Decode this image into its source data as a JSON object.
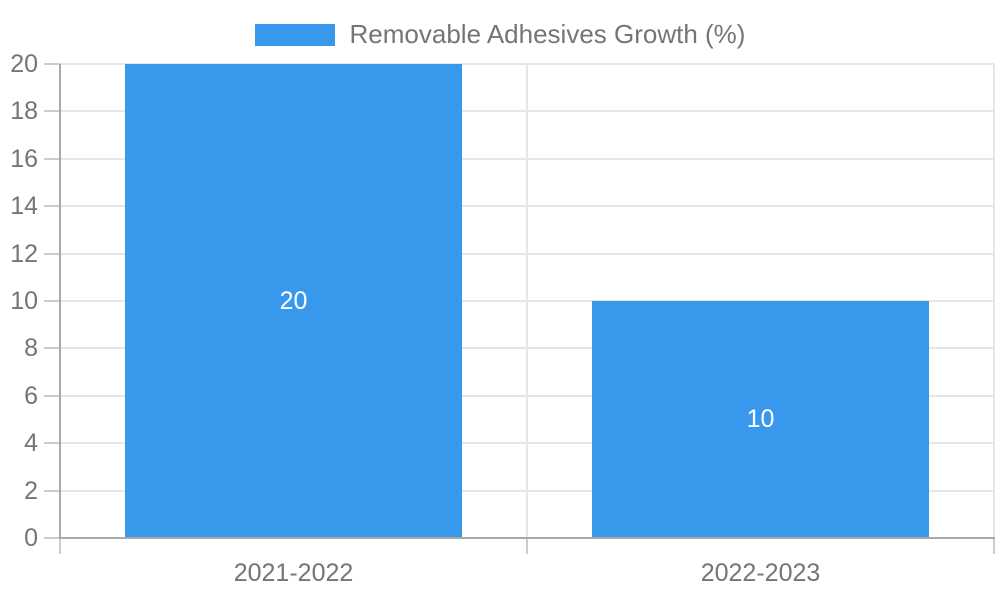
{
  "chart_data": {
    "type": "bar",
    "title": "",
    "legend": {
      "label": "Removable Adhesives Growth (%)",
      "position": "top"
    },
    "categories": [
      "2021-2022",
      "2022-2023"
    ],
    "series": [
      {
        "name": "Removable Adhesives Growth (%)",
        "values": [
          20,
          10
        ],
        "color": "#3899EC"
      }
    ],
    "bar_value_labels": [
      "20",
      "10"
    ],
    "xlabel": "",
    "ylabel": "",
    "ylim": [
      0,
      20
    ],
    "yticks": [
      0,
      2,
      4,
      6,
      8,
      10,
      12,
      14,
      16,
      18,
      20
    ],
    "grid": true,
    "colors": {
      "bar": "#3899EC",
      "bar_label_text": "#ffffff",
      "grid_line": "#e6e6e6",
      "axis_line": "#a9a9a9",
      "tick_mark": "#cccccc",
      "label_text": "#757575",
      "background": "#ffffff"
    }
  }
}
